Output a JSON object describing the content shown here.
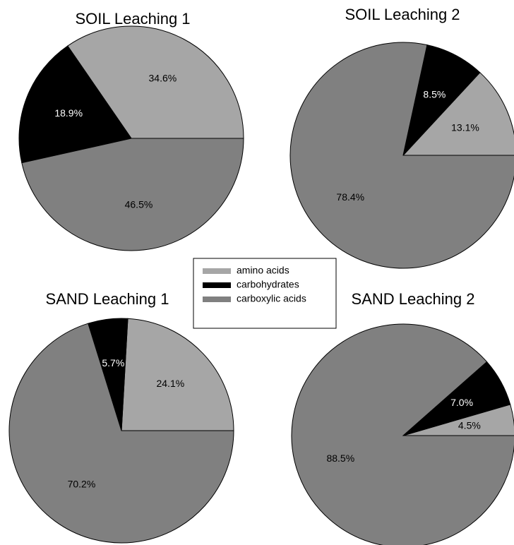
{
  "chart_data": [
    {
      "type": "pie",
      "title": "SOIL Leaching 1",
      "values": [
        34.6,
        18.9,
        46.5
      ],
      "value_labels": [
        "34.6%",
        "18.9%",
        "46.5%"
      ]
    },
    {
      "type": "pie",
      "title": "SOIL Leaching 2",
      "values": [
        13.1,
        8.5,
        78.4
      ],
      "value_labels": [
        "13.1%",
        "8.5%",
        "78.4%"
      ]
    },
    {
      "type": "pie",
      "title": "SAND Leaching 1",
      "values": [
        24.1,
        5.7,
        70.2
      ],
      "value_labels": [
        "24.1%",
        "5.7%",
        "70.2%"
      ]
    },
    {
      "type": "pie",
      "title": "SAND Leaching 2",
      "values": [
        4.5,
        7.0,
        88.5
      ],
      "value_labels": [
        "4.5%",
        "7.0%",
        "88.5%"
      ]
    }
  ],
  "legend": {
    "entries": [
      {
        "name": "amino acids",
        "color": "#a6a6a6"
      },
      {
        "name": "carbohydrates",
        "color": "#000000"
      },
      {
        "name": "carboxylic acids",
        "color": "#808080"
      }
    ]
  }
}
